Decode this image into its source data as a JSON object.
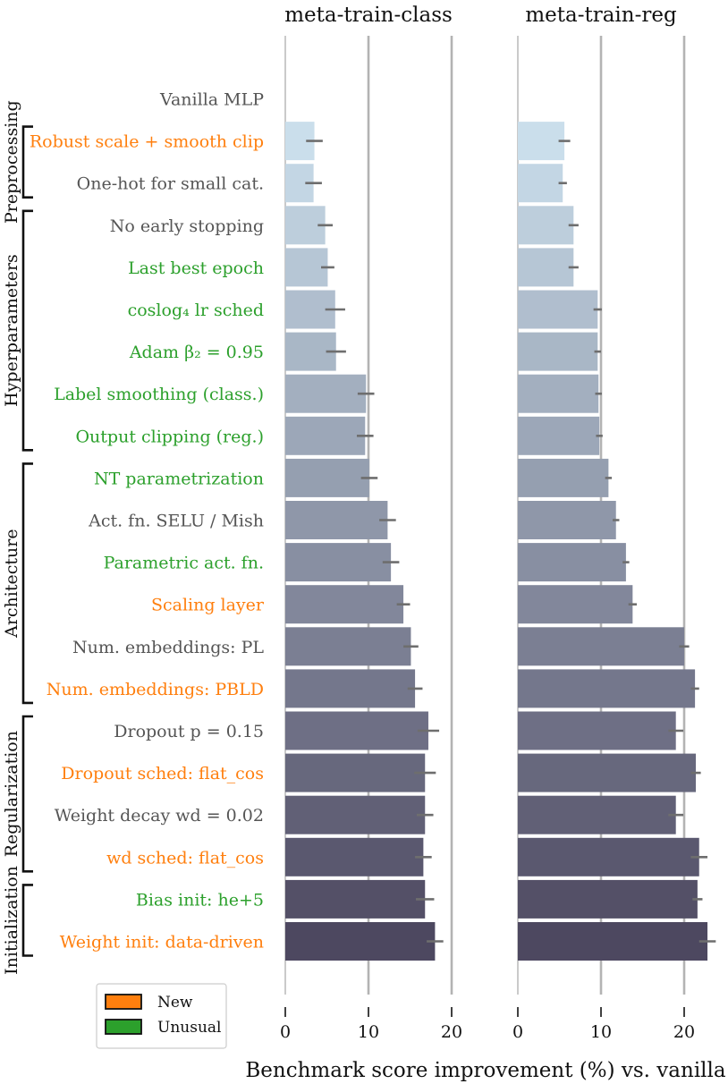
{
  "chart_data": {
    "type": "bar",
    "orientation": "horizontal",
    "xlabel": "Benchmark score improvement (%) vs. vanilla",
    "xlim": [
      0,
      24
    ],
    "xticks": [
      0,
      10,
      20
    ],
    "categories": [
      {
        "label": "Vanilla MLP",
        "kind": "default"
      },
      {
        "label": "Robust scale + smooth clip",
        "kind": "new"
      },
      {
        "label": "One-hot for small cat.",
        "kind": "default"
      },
      {
        "label": "No early stopping",
        "kind": "default"
      },
      {
        "label": "Last best epoch",
        "kind": "unusual"
      },
      {
        "label": "coslog₄ lr sched",
        "kind": "unusual"
      },
      {
        "label": "Adam β₂ = 0.95",
        "kind": "unusual"
      },
      {
        "label": "Label smoothing (class.)",
        "kind": "unusual"
      },
      {
        "label": "Output clipping (reg.)",
        "kind": "unusual"
      },
      {
        "label": "NT parametrization",
        "kind": "unusual"
      },
      {
        "label": "Act. fn. SELU / Mish",
        "kind": "default"
      },
      {
        "label": "Parametric act. fn.",
        "kind": "unusual"
      },
      {
        "label": "Scaling layer",
        "kind": "new"
      },
      {
        "label": "Num. embeddings: PL",
        "kind": "default"
      },
      {
        "label": "Num. embeddings: PBLD",
        "kind": "new"
      },
      {
        "label": "Dropout p = 0.15",
        "kind": "default"
      },
      {
        "label": "Dropout sched: flat_cos",
        "kind": "new"
      },
      {
        "label": "Weight decay wd = 0.02",
        "kind": "default"
      },
      {
        "label": "wd sched: flat_cos",
        "kind": "new"
      },
      {
        "label": "Bias init: he+5",
        "kind": "unusual"
      },
      {
        "label": "Weight init: data-driven",
        "kind": "new"
      }
    ],
    "groups": [
      {
        "name": "Preprocessing",
        "from": 1,
        "to": 2
      },
      {
        "name": "Hyperparameters",
        "from": 3,
        "to": 8
      },
      {
        "name": "Architecture",
        "from": 9,
        "to": 14
      },
      {
        "name": "Regularization",
        "from": 15,
        "to": 18
      },
      {
        "name": "Initialization",
        "from": 19,
        "to": 20
      }
    ],
    "series": [
      {
        "name": "meta-train-class",
        "values": [
          0,
          3.5,
          3.4,
          4.8,
          5.1,
          6.0,
          6.1,
          9.7,
          9.6,
          10.1,
          12.3,
          12.7,
          14.2,
          15.1,
          15.6,
          17.2,
          16.8,
          16.8,
          16.6,
          16.8,
          18.0
        ],
        "errors": [
          0,
          1.0,
          1.0,
          0.9,
          0.8,
          1.2,
          1.2,
          1.0,
          1.0,
          1.0,
          1.0,
          1.0,
          0.8,
          0.9,
          0.9,
          1.3,
          1.3,
          1.0,
          1.0,
          1.1,
          1.0
        ]
      },
      {
        "name": "meta-train-reg",
        "values": [
          0,
          5.6,
          5.4,
          6.7,
          6.7,
          9.6,
          9.6,
          9.7,
          9.8,
          10.9,
          11.8,
          13.0,
          13.8,
          20.0,
          21.3,
          19.0,
          21.4,
          19.0,
          21.8,
          21.6,
          22.8
        ],
        "errors": [
          0,
          0.7,
          0.5,
          0.6,
          0.6,
          0.5,
          0.4,
          0.4,
          0.4,
          0.4,
          0.4,
          0.4,
          0.5,
          0.6,
          0.5,
          0.9,
          0.6,
          0.9,
          1.0,
          0.6,
          1.0
        ]
      }
    ],
    "legend": {
      "position": "bottom-left",
      "entries": [
        {
          "label": "New",
          "color": "#ff7f0e"
        },
        {
          "label": "Unusual",
          "color": "#2ca02c"
        }
      ]
    },
    "colors": {
      "new": "#ff7f0e",
      "unusual": "#2ca02c",
      "default": "#555555",
      "bar_start": "#cadeeb",
      "bar_end": "#4d4860",
      "grid": "#b3b3b3",
      "error": "#6e6e6e"
    }
  }
}
